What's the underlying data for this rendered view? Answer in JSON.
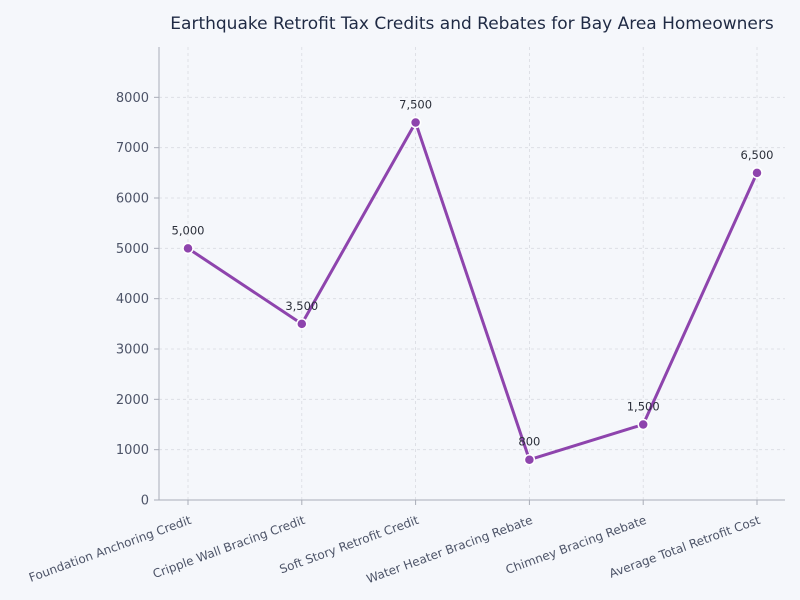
{
  "chart_data": {
    "type": "line",
    "title": "Earthquake Retrofit Tax Credits and Rebates for Bay Area Homeowners",
    "xlabel": "",
    "ylabel": "",
    "categories": [
      "Foundation Anchoring Credit",
      "Cripple Wall Bracing Credit",
      "Soft Story Retrofit Credit",
      "Water Heater Bracing Rebate",
      "Chimney Bracing Rebate",
      "Average Total Retrofit Cost"
    ],
    "series": [
      {
        "values": [
          5000,
          3500,
          7500,
          800,
          1500,
          6500
        ],
        "data_labels": [
          "5,000",
          "3,500",
          "7,500",
          "800",
          "1,500",
          "6,500"
        ]
      }
    ],
    "ylim": [
      0,
      9000
    ],
    "yticks": [
      0,
      1000,
      2000,
      3000,
      4000,
      5000,
      6000,
      7000,
      8000
    ],
    "grid": true,
    "legend": "none",
    "colors": {
      "line": "#8e44ad",
      "background": "#f5f7fb"
    }
  }
}
